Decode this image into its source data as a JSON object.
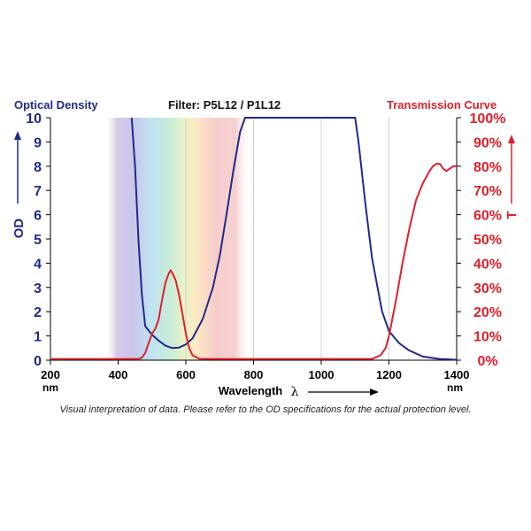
{
  "header": {
    "left_label": "Optical Density",
    "center_label": "Filter: P5L12 / P1L12",
    "right_label": "Transmission Curve"
  },
  "footnote": "Visual interpretation of data. Please refer to the OD specifications for the actual protection level.",
  "colors": {
    "od": "#1f2a8a",
    "transmission": "#e0202a",
    "axis": "#000000"
  },
  "chart_data": {
    "type": "line",
    "xlabel": "Wavelength",
    "xlabel_symbol": "λ",
    "x_unit": "nm",
    "xlim": [
      200,
      1400
    ],
    "x_ticks": [
      200,
      400,
      600,
      800,
      1000,
      1200,
      1400
    ],
    "left_axis": {
      "label": "OD",
      "ylim": [
        0,
        10
      ],
      "ticks": [
        "0",
        "1",
        "2",
        "3",
        "4",
        "5",
        "6",
        "7",
        "8",
        "9",
        "10"
      ]
    },
    "right_axis": {
      "label": "T",
      "ylim": [
        0,
        100
      ],
      "ticks": [
        "0%",
        "10%",
        "20%",
        "30%",
        "40%",
        "50%",
        "60%",
        "70%",
        "80%",
        "90%",
        "100%"
      ]
    },
    "grid": "vertical lines at x ticks",
    "visible_spectrum_band": [
      360,
      790
    ],
    "series": [
      {
        "axis": "left",
        "x": [
          440,
          450,
          460,
          470,
          480,
          500,
          520,
          540,
          560,
          580,
          600,
          620,
          650,
          680,
          700,
          720,
          740,
          760,
          775,
          800,
          900,
          1000,
          1100,
          1110,
          1130,
          1150,
          1180,
          1200,
          1230,
          1260,
          1300,
          1350,
          1400
        ],
        "y": [
          10,
          8,
          5,
          2.7,
          1.4,
          1.05,
          0.8,
          0.6,
          0.5,
          0.52,
          0.65,
          0.9,
          1.7,
          3.0,
          4.3,
          6.0,
          7.8,
          9.4,
          10,
          10,
          10,
          10,
          10,
          9.0,
          6.5,
          4.2,
          2.0,
          1.2,
          0.7,
          0.4,
          0.15,
          0.05,
          0.02
        ]
      },
      {
        "axis": "right",
        "x": [
          200,
          460,
          470,
          480,
          490,
          500,
          510,
          520,
          530,
          540,
          550,
          555,
          560,
          570,
          580,
          590,
          600,
          610,
          620,
          640,
          700,
          1150,
          1175,
          1190,
          1200,
          1220,
          1240,
          1260,
          1280,
          1300,
          1320,
          1330,
          1340,
          1350,
          1360,
          1370,
          1380,
          1390,
          1400
        ],
        "y": [
          0.5,
          0.5,
          1,
          3,
          7,
          11,
          13,
          17,
          25,
          32,
          36,
          37,
          36,
          33,
          27,
          19,
          11,
          5,
          2,
          0.6,
          0.5,
          0.5,
          2,
          5,
          10,
          24,
          40,
          54,
          66,
          73,
          78,
          80,
          81,
          81,
          79,
          78,
          79,
          80,
          80
        ]
      }
    ]
  }
}
